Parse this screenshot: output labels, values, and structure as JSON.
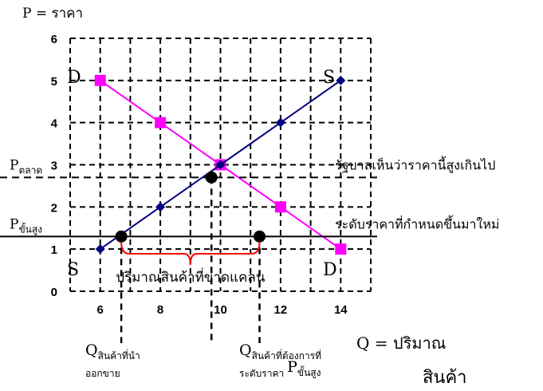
{
  "chart_data": {
    "type": "line",
    "title": "",
    "ylabel": "P = ราคา",
    "xlabel": "Q = ปริมาณ สินค้า",
    "xlabel_line1": "Q = ปริมาณ",
    "xlabel_line2": "สินค้า",
    "x": [
      6,
      8,
      10,
      12,
      14
    ],
    "x_tick_labels": [
      "6",
      "8",
      "10",
      "12",
      "14"
    ],
    "y_tick_labels": [
      "0",
      "1",
      "2",
      "3",
      "4",
      "5",
      "6"
    ],
    "xlim": [
      5,
      15
    ],
    "ylim": [
      0,
      6
    ],
    "grid": true,
    "series": [
      {
        "role": "demand",
        "color": "#ff00ff",
        "marker": "square",
        "points": [
          [
            6,
            5
          ],
          [
            8,
            4
          ],
          [
            10,
            3
          ],
          [
            12,
            2
          ],
          [
            14,
            1
          ]
        ]
      },
      {
        "role": "supply",
        "color": "#000080",
        "marker": "diamond",
        "points": [
          [
            6,
            1
          ],
          [
            8,
            2
          ],
          [
            10,
            3
          ],
          [
            12,
            4
          ],
          [
            14,
            5
          ]
        ]
      }
    ],
    "curve_end_labels": {
      "demand_top": "D",
      "demand_bottom": "D",
      "supply_top": "S",
      "supply_bottom": "S"
    },
    "highlight_points": [
      {
        "x": 9.7,
        "y": 2.7,
        "color": "#000000"
      },
      {
        "x": 6.7,
        "y": 1.3,
        "color": "#000000"
      },
      {
        "x": 11.3,
        "y": 1.3,
        "color": "#000000"
      }
    ],
    "price_lines": [
      {
        "y": 2.7,
        "style": "dashed",
        "label_main": "P",
        "label_sub": "ตลาด",
        "annotation": "รัฐบาลเห็นว่าราคานี้สูงเกินไป"
      },
      {
        "y": 1.3,
        "style": "solid",
        "label_main": "P",
        "label_sub": "ขั้นสูง",
        "annotation": "ระดับราคาที่กำหนดขึ้นมาใหม่"
      }
    ],
    "quantity_markers": [
      {
        "x": 6.7,
        "label_main": "Q",
        "label_sub": "สินค้าที่นำ",
        "label_line2": "ออกขาย"
      },
      {
        "x": 9.7,
        "label_main": "",
        "label_sub": "",
        "label_line2": ""
      },
      {
        "x": 11.3,
        "label_main": "Q",
        "label_sub": "สินค้าที่ต้องการที่",
        "label_line2": "ระดับราคา",
        "label_line2_p": "P",
        "label_line2_p_sub": "ขั้นสูง"
      }
    ],
    "shortage": {
      "label": "ปริมาณสินค้าที่ขาดแคลน",
      "color": "#ff0000",
      "from_x": 6.7,
      "to_x": 11.3
    }
  }
}
